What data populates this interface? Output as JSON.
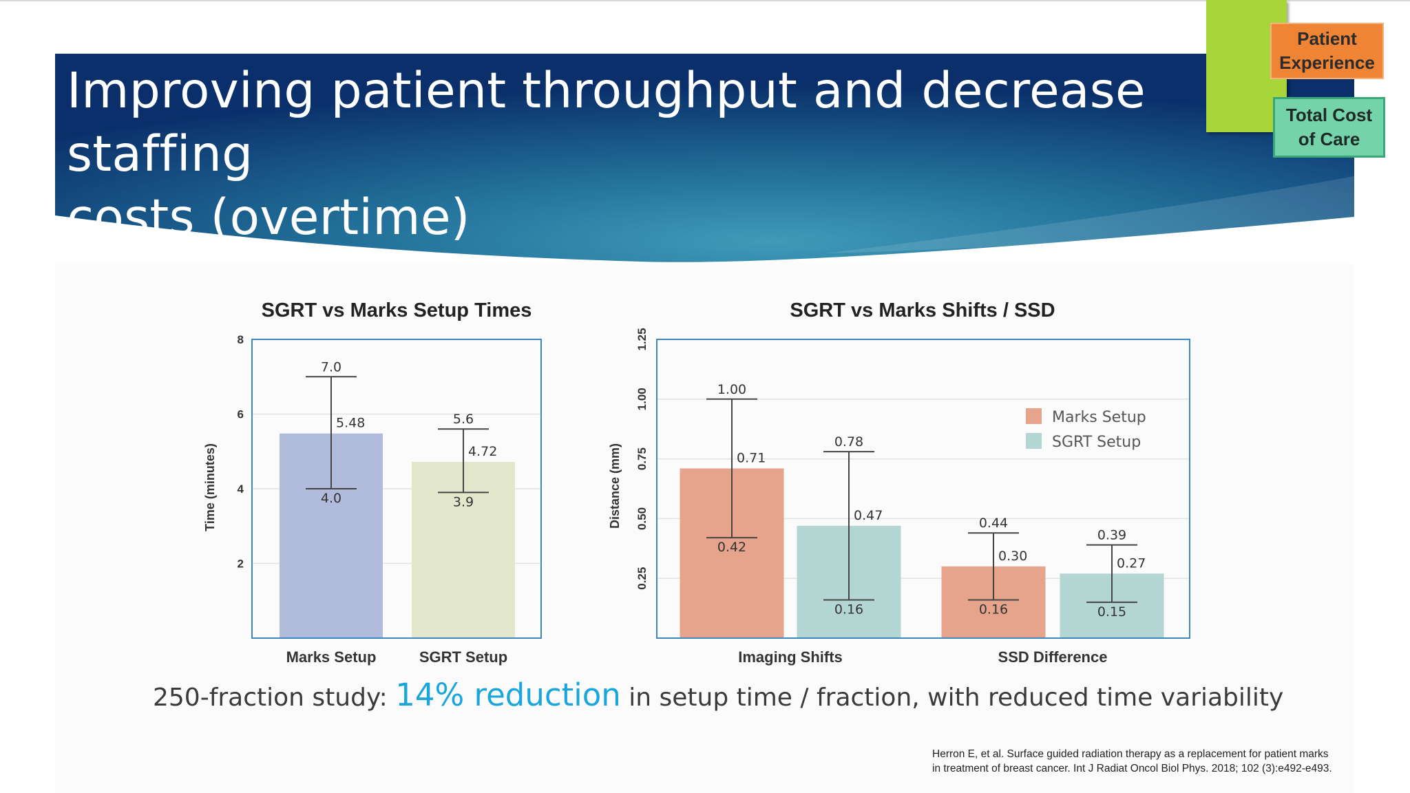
{
  "slide": {
    "title_line1": "Improving patient throughput and decrease staffing",
    "title_line2": "costs (overtime)",
    "tags": [
      {
        "label": "Patient\nExperience",
        "color": "#ee8434"
      },
      {
        "label": "Total Cost\nof Care",
        "color": "#74d3a8"
      }
    ],
    "caption": {
      "prefix": "250-fraction study: ",
      "highlight": "14% reduction",
      "suffix": " in setup time / fraction, with reduced time variability",
      "highlight_color": "#1aa6dc"
    },
    "citation_line1": "Herron E, et al. Surface guided radiation therapy as a replacement for patient marks",
    "citation_line2": "in treatment of breast cancer. Int J Radiat Oncol Biol Phys. 2018; 102 (3):e492-e493."
  },
  "chart_data": [
    {
      "type": "bar",
      "title": "SGRT vs Marks Setup Times",
      "ylabel": "Time (minutes)",
      "xlabel": "",
      "ylim": [
        0,
        8
      ],
      "yticks": [
        2,
        4,
        6,
        8
      ],
      "grid": true,
      "categories": [
        "Marks Setup",
        "SGRT Setup"
      ],
      "bars": [
        {
          "category": "Marks Setup",
          "value": 5.48,
          "label": "5.48",
          "err_low": 4.0,
          "err_high": 7.0,
          "err_low_label": "4.0",
          "err_high_label": "7.0",
          "color": "#b1bcdd"
        },
        {
          "category": "SGRT Setup",
          "value": 4.72,
          "label": "4.72",
          "err_low": 3.9,
          "err_high": 5.6,
          "err_low_label": "3.9",
          "err_high_label": "5.6",
          "color": "#e3e8cc"
        }
      ]
    },
    {
      "type": "bar",
      "title": "SGRT vs Marks Shifts / SSD",
      "ylabel": "Distance (mm)",
      "xlabel": "",
      "ylim": [
        0,
        1.25
      ],
      "yticks": [
        0.25,
        0.5,
        0.75,
        1.0,
        1.25
      ],
      "ytick_labels": [
        "0.25",
        "0.50",
        "0.75",
        "1.00",
        "1.25"
      ],
      "grid": true,
      "legend_position": "top-right",
      "categories": [
        "Imaging Shifts",
        "SSD Difference"
      ],
      "series": [
        {
          "name": "Marks Setup",
          "color": "#e5a48b",
          "values": [
            0.71,
            0.3
          ],
          "labels": [
            "0.71",
            "0.30"
          ],
          "err_low": [
            0.42,
            0.16
          ],
          "err_high": [
            1.0,
            0.44
          ],
          "err_low_labels": [
            "0.42",
            "0.16"
          ],
          "err_high_labels": [
            "1.00",
            "0.44"
          ]
        },
        {
          "name": "SGRT Setup",
          "color": "#b4d6d3",
          "values": [
            0.47,
            0.27
          ],
          "labels": [
            "0.47",
            "0.27"
          ],
          "err_low": [
            0.16,
            0.15
          ],
          "err_high": [
            0.78,
            0.39
          ],
          "err_low_labels": [
            "0.16",
            "0.15"
          ],
          "err_high_labels": [
            "0.78",
            "0.39"
          ]
        }
      ]
    }
  ]
}
